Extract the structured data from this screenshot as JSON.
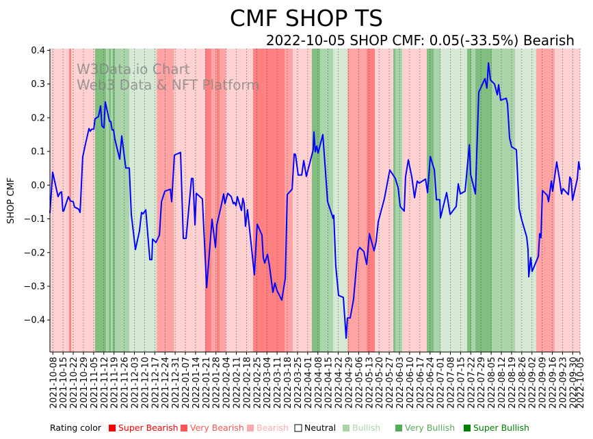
{
  "chart_data": {
    "type": "line",
    "title": "CMF SHOP TS",
    "subtitle": "2022-10-05 SHOP CMF: 0.05(-33.5%) Bearish",
    "ylabel": "SHOP CMF",
    "xlabel": "",
    "watermark": [
      "W3Data.io Chart",
      "Web3 Data & NFT Platform"
    ],
    "x_unit": "days since 2021-10-06",
    "xlim": [
      0,
      364
    ],
    "ylim": [
      -0.495,
      0.405
    ],
    "yticks": [
      0.4,
      0.3,
      0.2,
      0.1,
      0.0,
      -0.1,
      -0.2,
      -0.3,
      -0.4
    ],
    "ytick_labels": [
      "0.4",
      "0.3",
      "0.2",
      "0.1",
      "0.0",
      "−0.1",
      "−0.2",
      "−0.3",
      "−0.4"
    ],
    "xticks": [
      2,
      9,
      16,
      23,
      30,
      37,
      44,
      51,
      58,
      65,
      72,
      79,
      86,
      93,
      100,
      107,
      114,
      121,
      128,
      135,
      142,
      149,
      156,
      163,
      170,
      177,
      184,
      191,
      198,
      205,
      212,
      219,
      226,
      233,
      240,
      247,
      254,
      261,
      268,
      275,
      282,
      289,
      296,
      303,
      310,
      317,
      324,
      331,
      338,
      345,
      352,
      359,
      364
    ],
    "xtick_labels": [
      "2021-10-08",
      "2021-10-15",
      "2021-10-22",
      "2021-10-29",
      "2021-11-05",
      "2021-11-12",
      "2021-11-19",
      "2021-11-26",
      "2021-12-03",
      "2021-12-10",
      "2021-12-17",
      "2021-12-24",
      "2021-12-31",
      "2022-01-07",
      "2022-01-14",
      "2022-01-21",
      "2022-01-28",
      "2022-02-04",
      "2022-02-11",
      "2022-02-18",
      "2022-02-25",
      "2022-03-04",
      "2022-03-11",
      "2022-03-18",
      "2022-03-25",
      "2022-04-01",
      "2022-04-08",
      "2022-04-15",
      "2022-04-22",
      "2022-04-29",
      "2022-05-06",
      "2022-05-13",
      "2022-05-20",
      "2022-05-27",
      "2022-06-03",
      "2022-06-10",
      "2022-06-17",
      "2022-06-24",
      "2022-07-01",
      "2022-07-08",
      "2022-07-15",
      "2022-07-22",
      "2022-07-29",
      "2022-08-05",
      "2022-08-12",
      "2022-08-19",
      "2022-08-26",
      "2022-09-02",
      "2022-09-09",
      "2022-09-16",
      "2022-09-23",
      "2022-09-30",
      "2022-10-05"
    ],
    "grid": "vertical dotted",
    "series": [
      {
        "name": "SHOP CMF",
        "color": "#0000ff",
        "points": [
          [
            0,
            -0.083
          ],
          [
            1.9,
            0.039
          ],
          [
            5.6,
            -0.034
          ],
          [
            7.0,
            -0.022
          ],
          [
            8.0,
            -0.02
          ],
          [
            8.9,
            -0.077
          ],
          [
            9.4,
            -0.077
          ],
          [
            12.7,
            -0.034
          ],
          [
            14.1,
            -0.047
          ],
          [
            16.0,
            -0.049
          ],
          [
            16.9,
            -0.065
          ],
          [
            19.7,
            -0.071
          ],
          [
            20.7,
            -0.081
          ],
          [
            22.5,
            0.083
          ],
          [
            24.0,
            0.114
          ],
          [
            26.8,
            0.168
          ],
          [
            27.7,
            0.16
          ],
          [
            28.7,
            0.166
          ],
          [
            30.1,
            0.166
          ],
          [
            31.0,
            0.197
          ],
          [
            33.3,
            0.203
          ],
          [
            34.8,
            0.235
          ],
          [
            35.7,
            0.176
          ],
          [
            37.1,
            0.17
          ],
          [
            38.0,
            0.247
          ],
          [
            40.9,
            0.189
          ],
          [
            41.8,
            0.189
          ],
          [
            42.7,
            0.164
          ],
          [
            43.7,
            0.164
          ],
          [
            44.6,
            0.136
          ],
          [
            47.9,
            0.077
          ],
          [
            49.3,
            0.146
          ],
          [
            52.1,
            0.051
          ],
          [
            54.5,
            0.051
          ],
          [
            55.9,
            -0.087
          ],
          [
            58.7,
            -0.191
          ],
          [
            61.5,
            -0.136
          ],
          [
            62.9,
            -0.081
          ],
          [
            63.9,
            -0.085
          ],
          [
            65.8,
            -0.073
          ],
          [
            68.6,
            -0.221
          ],
          [
            70.0,
            -0.221
          ],
          [
            70.5,
            -0.16
          ],
          [
            72.8,
            -0.17
          ],
          [
            75.2,
            -0.148
          ],
          [
            76.6,
            -0.049
          ],
          [
            78.9,
            -0.018
          ],
          [
            82.7,
            -0.012
          ],
          [
            83.6,
            -0.049
          ],
          [
            85.5,
            0.089
          ],
          [
            89.7,
            0.097
          ],
          [
            91.6,
            -0.158
          ],
          [
            93.5,
            -0.158
          ],
          [
            97.2,
            0.02
          ],
          [
            98.2,
            0.02
          ],
          [
            99.6,
            -0.118
          ],
          [
            100.5,
            -0.024
          ],
          [
            104.7,
            -0.041
          ],
          [
            107.6,
            -0.304
          ],
          [
            111.3,
            -0.101
          ],
          [
            113.7,
            -0.185
          ],
          [
            114.6,
            -0.118
          ],
          [
            117.4,
            -0.065
          ],
          [
            119.3,
            -0.026
          ],
          [
            120.2,
            -0.055
          ],
          [
            122.1,
            -0.024
          ],
          [
            124.5,
            -0.034
          ],
          [
            125.9,
            -0.055
          ],
          [
            126.8,
            -0.051
          ],
          [
            127.8,
            -0.061
          ],
          [
            128.7,
            -0.034
          ],
          [
            131.5,
            -0.075
          ],
          [
            132.5,
            -0.039
          ],
          [
            133.4,
            -0.055
          ],
          [
            134.3,
            -0.122
          ],
          [
            135.7,
            -0.073
          ],
          [
            140.4,
            -0.266
          ],
          [
            142.3,
            -0.116
          ],
          [
            145.6,
            -0.148
          ],
          [
            146.5,
            -0.215
          ],
          [
            147.5,
            -0.231
          ],
          [
            149.4,
            -0.205
          ],
          [
            150.8,
            -0.241
          ],
          [
            153.1,
            -0.318
          ],
          [
            154.5,
            -0.29
          ],
          [
            155.9,
            -0.312
          ],
          [
            159.2,
            -0.341
          ],
          [
            161.6,
            -0.276
          ],
          [
            163.0,
            -0.028
          ],
          [
            166.3,
            -0.012
          ],
          [
            167.7,
            0.093
          ],
          [
            168.6,
            0.091
          ],
          [
            170.5,
            0.03
          ],
          [
            172.9,
            0.03
          ],
          [
            174.3,
            0.073
          ],
          [
            176.1,
            0.026
          ],
          [
            180.8,
            0.105
          ],
          [
            181.3,
            0.158
          ],
          [
            182.2,
            0.099
          ],
          [
            183.2,
            0.116
          ],
          [
            184.1,
            0.095
          ],
          [
            187.4,
            0.15
          ],
          [
            188.8,
            0.065
          ],
          [
            190.7,
            -0.049
          ],
          [
            194.5,
            -0.099
          ],
          [
            194.9,
            -0.089
          ],
          [
            196.3,
            -0.239
          ],
          [
            198.2,
            -0.327
          ],
          [
            201.5,
            -0.333
          ],
          [
            203.4,
            -0.454
          ],
          [
            204.3,
            -0.394
          ],
          [
            206.2,
            -0.394
          ],
          [
            208.5,
            -0.339
          ],
          [
            211.4,
            -0.195
          ],
          [
            212.8,
            -0.185
          ],
          [
            215.6,
            -0.197
          ],
          [
            217.5,
            -0.235
          ],
          [
            219.4,
            -0.144
          ],
          [
            222.6,
            -0.195
          ],
          [
            224.0,
            -0.168
          ],
          [
            225.5,
            -0.108
          ],
          [
            229.7,
            -0.039
          ],
          [
            231.6,
            0.004
          ],
          [
            233.4,
            0.045
          ],
          [
            237.2,
            0.02
          ],
          [
            239.1,
            -0.008
          ],
          [
            240.5,
            -0.063
          ],
          [
            243.3,
            -0.077
          ],
          [
            244.2,
            0.024
          ],
          [
            246.1,
            0.075
          ],
          [
            248.5,
            0.024
          ],
          [
            250.4,
            -0.037
          ],
          [
            252.2,
            0.012
          ],
          [
            253.6,
            0.006
          ],
          [
            257.9,
            0.018
          ],
          [
            259.3,
            -0.022
          ],
          [
            261.2,
            0.085
          ],
          [
            264.0,
            0.045
          ],
          [
            265.4,
            -0.043
          ],
          [
            267.7,
            -0.043
          ],
          [
            268.2,
            -0.097
          ],
          [
            272.4,
            -0.022
          ],
          [
            274.8,
            -0.087
          ],
          [
            279.0,
            -0.063
          ],
          [
            280.4,
            0.004
          ],
          [
            281.8,
            -0.026
          ],
          [
            285.1,
            -0.018
          ],
          [
            288.0,
            0.12
          ],
          [
            288.9,
            0.032
          ],
          [
            292.2,
            -0.026
          ],
          [
            294.5,
            0.276
          ],
          [
            298.7,
            0.316
          ],
          [
            300.1,
            0.288
          ],
          [
            301.1,
            0.363
          ],
          [
            302.5,
            0.312
          ],
          [
            305.3,
            0.3
          ],
          [
            307.2,
            0.268
          ],
          [
            308.1,
            0.298
          ],
          [
            309.5,
            0.252
          ],
          [
            313.3,
            0.258
          ],
          [
            314.2,
            0.241
          ],
          [
            315.6,
            0.14
          ],
          [
            317.0,
            0.114
          ],
          [
            320.3,
            0.105
          ],
          [
            322.2,
            -0.069
          ],
          [
            323.6,
            -0.097
          ],
          [
            327.4,
            -0.154
          ],
          [
            328.3,
            -0.191
          ],
          [
            328.8,
            -0.272
          ],
          [
            330.2,
            -0.215
          ],
          [
            331.1,
            -0.256
          ],
          [
            335.4,
            -0.211
          ],
          [
            336.3,
            -0.144
          ],
          [
            337.2,
            -0.156
          ],
          [
            338.2,
            -0.016
          ],
          [
            341.5,
            -0.03
          ],
          [
            342.4,
            -0.049
          ],
          [
            344.3,
            0.012
          ],
          [
            345.2,
            -0.018
          ],
          [
            348.0,
            0.069
          ],
          [
            349.9,
            0.018
          ],
          [
            351.3,
            -0.026
          ],
          [
            352.3,
            -0.01
          ],
          [
            356.0,
            -0.028
          ],
          [
            357.0,
            0.024
          ],
          [
            357.9,
            0.018
          ],
          [
            358.9,
            -0.045
          ],
          [
            362.1,
            0.018
          ],
          [
            363.1,
            0.069
          ],
          [
            364.0,
            0.045
          ]
        ]
      }
    ],
    "rating_bands": [
      [
        0,
        13.2,
        "bearish"
      ],
      [
        13.2,
        14.6,
        "super_bearish"
      ],
      [
        14.6,
        31.0,
        "bearish"
      ],
      [
        31.0,
        38.5,
        "super_bullish"
      ],
      [
        38.5,
        40.4,
        "very_bullish"
      ],
      [
        40.4,
        41.8,
        "super_bullish"
      ],
      [
        41.8,
        43.2,
        "very_bullish"
      ],
      [
        43.2,
        44.6,
        "super_bullish"
      ],
      [
        44.6,
        54.5,
        "very_bullish"
      ],
      [
        54.5,
        73.3,
        "bullish"
      ],
      [
        73.3,
        85.0,
        "very_bearish"
      ],
      [
        85.0,
        106.6,
        "bearish"
      ],
      [
        106.6,
        110.8,
        "super_bearish"
      ],
      [
        110.8,
        114.6,
        "very_bearish"
      ],
      [
        114.6,
        116.5,
        "super_bearish"
      ],
      [
        116.5,
        120.7,
        "very_bearish"
      ],
      [
        120.7,
        139.5,
        "bearish"
      ],
      [
        139.5,
        161.1,
        "super_bearish"
      ],
      [
        161.1,
        166.7,
        "very_bearish"
      ],
      [
        166.7,
        179.9,
        "bearish"
      ],
      [
        179.9,
        185.5,
        "super_bullish"
      ],
      [
        185.5,
        194.5,
        "very_bullish"
      ],
      [
        194.5,
        204.3,
        "bullish"
      ],
      [
        204.3,
        217.5,
        "very_bearish"
      ],
      [
        217.5,
        223.1,
        "super_bearish"
      ],
      [
        223.1,
        235.8,
        "bearish"
      ],
      [
        235.8,
        237.2,
        "super_bullish"
      ],
      [
        237.2,
        241.9,
        "very_bullish"
      ],
      [
        241.9,
        258.8,
        "bearish"
      ],
      [
        258.8,
        263.5,
        "super_bullish"
      ],
      [
        263.5,
        268.2,
        "very_bullish"
      ],
      [
        268.2,
        286.5,
        "bullish"
      ],
      [
        286.5,
        289.3,
        "super_bullish"
      ],
      [
        289.3,
        292.2,
        "very_bullish"
      ],
      [
        292.2,
        303.4,
        "super_bullish"
      ],
      [
        303.4,
        319.4,
        "very_bullish"
      ],
      [
        319.4,
        334.0,
        "bullish"
      ],
      [
        334.0,
        346.6,
        "very_bearish"
      ],
      [
        346.6,
        364,
        "bearish"
      ]
    ],
    "band_colors": {
      "super_bearish": "#ff8080",
      "very_bearish": "#ffa3a3",
      "bearish": "#ffd2d2",
      "bullish": "#d5e9d4",
      "very_bullish": "#aad4a9",
      "super_bullish": "#80bf7f"
    },
    "legend": {
      "title": "Rating color",
      "placement": "bottom",
      "items": [
        {
          "label": "Super Bearish",
          "color": "#ff0000",
          "text_color": "#ff0000"
        },
        {
          "label": "Very Bearish",
          "color": "#ff5555",
          "text_color": "#ff5555"
        },
        {
          "label": "Bearish",
          "color": "#ffaaaa",
          "text_color": "#ffaaaa"
        },
        {
          "label": "Neutral",
          "color": "#ffffff",
          "text_color": "#000000"
        },
        {
          "label": "Bullish",
          "color": "#aad4aa",
          "text_color": "#aad4aa"
        },
        {
          "label": "Very Bullish",
          "color": "#55aa55",
          "text_color": "#55aa55"
        },
        {
          "label": "Super Bullish",
          "color": "#008000",
          "text_color": "#008000"
        }
      ]
    }
  }
}
